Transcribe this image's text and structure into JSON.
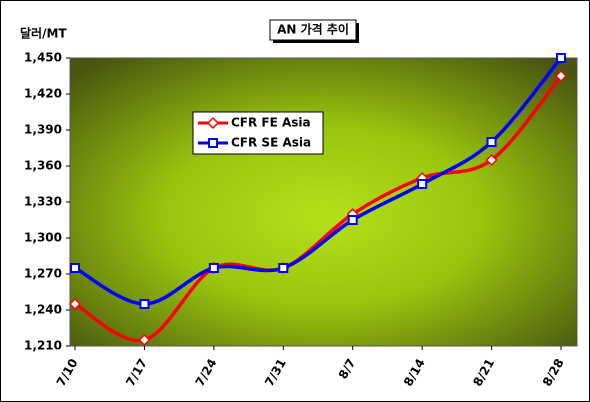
{
  "chart_data": {
    "type": "line",
    "title": "AN 가격 추이",
    "y_label": "달러/MT",
    "categories": [
      "7/10",
      "7/17",
      "7/24",
      "7/31",
      "8/7",
      "8/14",
      "8/21",
      "8/28"
    ],
    "series": [
      {
        "name": "CFR FE Asia",
        "color": "#ff0000",
        "marker": "diamond",
        "values": [
          1245,
          1215,
          1275,
          1275,
          1320,
          1350,
          1365,
          1435
        ]
      },
      {
        "name": "CFR SE Asia",
        "color": "#0000ff",
        "marker": "square",
        "values": [
          1275,
          1245,
          1275,
          1275,
          1315,
          1345,
          1380,
          1450
        ]
      }
    ],
    "ylim": [
      1210,
      1450
    ],
    "yticks": [
      {
        "value": 1210,
        "label": "1,210"
      },
      {
        "value": 1240,
        "label": "1,240"
      },
      {
        "value": 1270,
        "label": "1,270"
      },
      {
        "value": 1300,
        "label": "1,300"
      },
      {
        "value": 1330,
        "label": "1,330"
      },
      {
        "value": 1360,
        "label": "1,360"
      },
      {
        "value": 1390,
        "label": "1,390"
      },
      {
        "value": 1420,
        "label": "1,420"
      },
      {
        "value": 1450,
        "label": "1,450"
      }
    ]
  }
}
